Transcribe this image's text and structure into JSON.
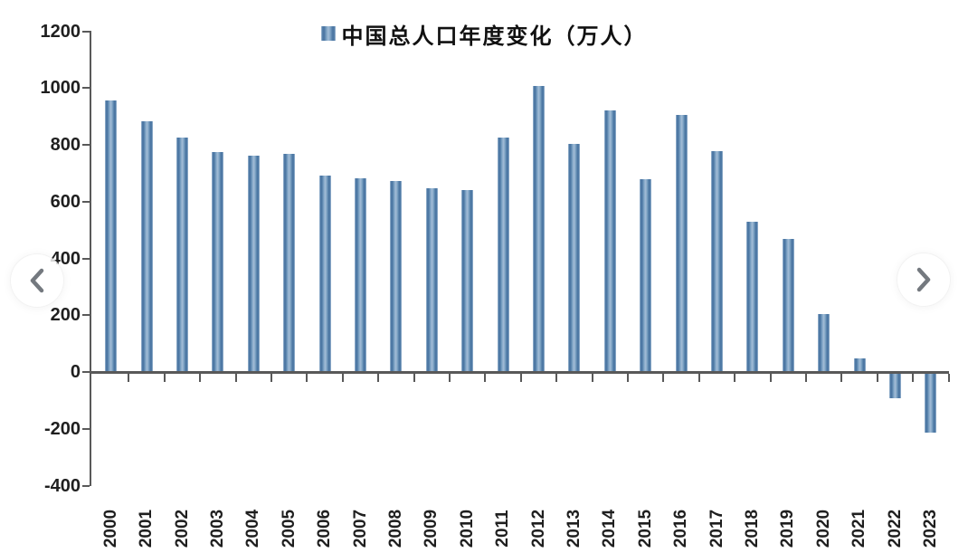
{
  "legend": {
    "label": "中国总人口年度变化（万人）"
  },
  "nav": {
    "prev_icon": "chevron-left",
    "next_icon": "chevron-right"
  },
  "colors": {
    "bar": "#4e79a7",
    "bar_edge": "#4d78a4",
    "bar_center": "#a3bdd7",
    "axis": "#595959",
    "tick_label": "#1f1f1f",
    "nav_chevron": "#74797f",
    "background": "#ffffff"
  },
  "chart_data": {
    "type": "bar",
    "title": "中国总人口年度变化（万人）",
    "xlabel": "",
    "ylabel": "",
    "legend_position": "top",
    "grid": false,
    "ylim": [
      -400,
      1200
    ],
    "ytick_step": 200,
    "yticks": [
      1200,
      1000,
      800,
      600,
      400,
      200,
      0,
      -200,
      -400
    ],
    "categories": [
      "2000",
      "2001",
      "2002",
      "2003",
      "2004",
      "2005",
      "2006",
      "2007",
      "2008",
      "2009",
      "2010",
      "2011",
      "2012",
      "2013",
      "2014",
      "2015",
      "2016",
      "2017",
      "2018",
      "2019",
      "2020",
      "2021",
      "2022",
      "2023"
    ],
    "values": [
      957,
      884,
      826,
      774,
      761,
      768,
      692,
      681,
      673,
      647,
      641,
      825,
      1006,
      804,
      920,
      680,
      906,
      779,
      530,
      467,
      204,
      48,
      -85,
      -208
    ]
  }
}
